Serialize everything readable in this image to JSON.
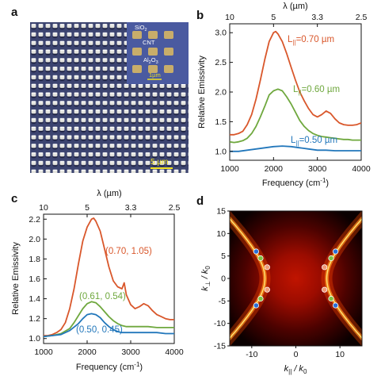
{
  "panels": {
    "a": {
      "letter": "a",
      "inset_labels": [
        "SiO",
        "CNT",
        "Al",
        "O"
      ],
      "inset_sub": [
        "2",
        "2",
        "3"
      ],
      "inset_scale": "1µm",
      "scale": "5 µm"
    },
    "b": {
      "letter": "b"
    },
    "c": {
      "letter": "c"
    },
    "d": {
      "letter": "d"
    }
  },
  "chart_data": [
    {
      "panel": "b",
      "type": "line",
      "ylabel": "Relative Emissivity",
      "xlabel_main": "Frequency (cm",
      "xlabel_sup": "-1",
      "xlabel_end": ")",
      "top_axis_label": "λ (µm)",
      "xlim": [
        1000,
        4000
      ],
      "ylim": [
        0.85,
        3.15
      ],
      "xticks": [
        1000,
        2000,
        3000,
        4000
      ],
      "xtick_labels": [
        "1000",
        "2000",
        "3000",
        "4000"
      ],
      "yticks": [
        1.0,
        1.5,
        2.0,
        2.5,
        3.0
      ],
      "ytick_labels": [
        "1.0",
        "1.5",
        "2.0",
        "2.5",
        "3.0"
      ],
      "top_ticks": [
        1000,
        2000,
        3000,
        4000
      ],
      "top_tick_labels": [
        "10",
        "5",
        "3.3",
        "2.5"
      ],
      "series": [
        {
          "name_main": "L",
          "name_sub": "||",
          "name_tail": "=0.70 µm",
          "color": "#d9572b",
          "x": [
            1000,
            1100,
            1200,
            1300,
            1400,
            1500,
            1600,
            1700,
            1800,
            1900,
            2000,
            2050,
            2100,
            2200,
            2300,
            2400,
            2500,
            2600,
            2700,
            2800,
            2900,
            3000,
            3100,
            3200,
            3300,
            3400,
            3500,
            3600,
            3700,
            3800,
            3900,
            4000
          ],
          "y": [
            1.28,
            1.28,
            1.3,
            1.34,
            1.45,
            1.62,
            1.88,
            2.2,
            2.55,
            2.85,
            3.0,
            3.02,
            2.98,
            2.85,
            2.65,
            2.42,
            2.2,
            2.0,
            1.85,
            1.72,
            1.62,
            1.58,
            1.62,
            1.68,
            1.64,
            1.55,
            1.48,
            1.45,
            1.44,
            1.44,
            1.45,
            1.48
          ]
        },
        {
          "name_main": "L",
          "name_sub": "||",
          "name_tail": "=0.60 µm",
          "color": "#6fa83e",
          "x": [
            1000,
            1100,
            1200,
            1300,
            1400,
            1500,
            1600,
            1700,
            1800,
            1900,
            2000,
            2100,
            2200,
            2300,
            2400,
            2500,
            2600,
            2700,
            2800,
            2900,
            3000,
            3100,
            3200,
            3300,
            3400,
            3500,
            3600,
            3700,
            3800,
            3900,
            4000
          ],
          "y": [
            1.16,
            1.15,
            1.16,
            1.18,
            1.22,
            1.3,
            1.42,
            1.58,
            1.76,
            1.95,
            2.02,
            2.05,
            2.02,
            1.92,
            1.8,
            1.66,
            1.52,
            1.42,
            1.35,
            1.3,
            1.27,
            1.25,
            1.24,
            1.23,
            1.22,
            1.21,
            1.2,
            1.2,
            1.19,
            1.19,
            1.19
          ]
        },
        {
          "name_main": "L",
          "name_sub": "||",
          "name_tail": "=0.50 µm",
          "color": "#2277bb",
          "x": [
            1000,
            1200,
            1400,
            1600,
            1800,
            2000,
            2200,
            2400,
            2600,
            2800,
            3000,
            3200,
            3400,
            3600,
            3800,
            4000
          ],
          "y": [
            1.0,
            1.0,
            1.02,
            1.04,
            1.06,
            1.08,
            1.09,
            1.08,
            1.06,
            1.04,
            1.02,
            1.02,
            1.01,
            1.01,
            1.01,
            1.01
          ]
        }
      ]
    },
    {
      "panel": "c",
      "type": "line",
      "ylabel": "Relative Emissivity",
      "xlabel_main": "Frequency (cm",
      "xlabel_sup": "-1",
      "xlabel_end": ")",
      "top_axis_label": "λ (µm)",
      "xlim": [
        1000,
        4000
      ],
      "ylim": [
        0.95,
        2.25
      ],
      "xticks": [
        1000,
        2000,
        3000,
        4000
      ],
      "xtick_labels": [
        "1000",
        "2000",
        "3000",
        "4000"
      ],
      "yticks": [
        1.0,
        1.2,
        1.4,
        1.6,
        1.8,
        2.0,
        2.2
      ],
      "ytick_labels": [
        "1.0",
        "1.2",
        "1.4",
        "1.6",
        "1.8",
        "2.0",
        "2.2"
      ],
      "top_ticks": [
        1000,
        2000,
        3000,
        4000
      ],
      "top_tick_labels": [
        "10",
        "5",
        "3.3",
        "2.5"
      ],
      "series": [
        {
          "name": "(0.70, 1.05)",
          "color": "#d9572b",
          "x": [
            1000,
            1100,
            1200,
            1300,
            1400,
            1500,
            1600,
            1700,
            1800,
            1900,
            2000,
            2100,
            2150,
            2200,
            2300,
            2400,
            2500,
            2600,
            2700,
            2800,
            2850,
            2900,
            3000,
            3100,
            3200,
            3300,
            3400,
            3500,
            3600,
            3700,
            3800,
            3900,
            4000
          ],
          "y": [
            1.03,
            1.03,
            1.04,
            1.06,
            1.09,
            1.16,
            1.3,
            1.5,
            1.75,
            1.98,
            2.12,
            2.2,
            2.21,
            2.18,
            2.08,
            1.9,
            1.72,
            1.58,
            1.52,
            1.5,
            1.56,
            1.44,
            1.34,
            1.3,
            1.32,
            1.35,
            1.33,
            1.28,
            1.24,
            1.22,
            1.2,
            1.19,
            1.19
          ]
        },
        {
          "name": "(0.61, 0.54)",
          "color": "#6fa83e",
          "x": [
            1000,
            1200,
            1400,
            1600,
            1700,
            1800,
            1900,
            2000,
            2100,
            2200,
            2300,
            2400,
            2500,
            2600,
            2700,
            2800,
            2900,
            3000,
            3200,
            3400,
            3600,
            3800,
            4000
          ],
          "y": [
            1.02,
            1.03,
            1.05,
            1.1,
            1.16,
            1.23,
            1.3,
            1.35,
            1.37,
            1.36,
            1.32,
            1.27,
            1.22,
            1.18,
            1.15,
            1.13,
            1.12,
            1.12,
            1.12,
            1.12,
            1.11,
            1.11,
            1.11
          ]
        },
        {
          "name": "(0.50, 0.45)",
          "color": "#2277bb",
          "x": [
            1000,
            1200,
            1400,
            1600,
            1800,
            1900,
            2000,
            2100,
            2200,
            2300,
            2400,
            2500,
            2600,
            2700,
            2800,
            2900,
            3000,
            3200,
            3400,
            3600,
            3800,
            4000
          ],
          "y": [
            1.02,
            1.03,
            1.04,
            1.08,
            1.15,
            1.2,
            1.24,
            1.25,
            1.24,
            1.21,
            1.16,
            1.12,
            1.09,
            1.07,
            1.06,
            1.06,
            1.06,
            1.06,
            1.06,
            1.06,
            1.05,
            1.05
          ]
        }
      ]
    },
    {
      "panel": "d",
      "type": "heatmap",
      "xlabel_main": "k",
      "xlabel_sub": "||",
      "xlabel_tail": " / k",
      "xlabel_sub2": "0",
      "ylabel_main": "k",
      "ylabel_sub": "⊥",
      "ylabel_tail": " / k",
      "ylabel_sub2": "0",
      "xlim": [
        -15,
        15
      ],
      "ylim": [
        -15,
        15
      ],
      "xticks": [
        -10,
        0,
        10
      ],
      "xtick_labels": [
        "-10",
        "0",
        "10"
      ],
      "yticks": [
        -15,
        -10,
        -5,
        0,
        5,
        10,
        15
      ],
      "ytick_labels": [
        "-15",
        "-10",
        "-5",
        "0",
        "5",
        "10",
        "15"
      ],
      "hyperbola_vertex": 7,
      "points": [
        {
          "x": -9,
          "y": 6,
          "color": "#2a6fd6"
        },
        {
          "x": -8,
          "y": 4.5,
          "color": "#7cc142"
        },
        {
          "x": -6.5,
          "y": 2.5,
          "color": "#ef9a78"
        },
        {
          "x": -6.5,
          "y": -2.5,
          "color": "#ef9a78"
        },
        {
          "x": -8,
          "y": -4.5,
          "color": "#7cc142"
        },
        {
          "x": -9,
          "y": -6,
          "color": "#2a6fd6"
        },
        {
          "x": 9,
          "y": 6,
          "color": "#2a6fd6"
        },
        {
          "x": 8,
          "y": 4.5,
          "color": "#7cc142"
        },
        {
          "x": 6.5,
          "y": 2.5,
          "color": "#ef9a78"
        },
        {
          "x": 6.5,
          "y": -2.5,
          "color": "#ef9a78"
        },
        {
          "x": 8,
          "y": -4.5,
          "color": "#7cc142"
        },
        {
          "x": 9,
          "y": -6,
          "color": "#2a6fd6"
        }
      ]
    }
  ]
}
